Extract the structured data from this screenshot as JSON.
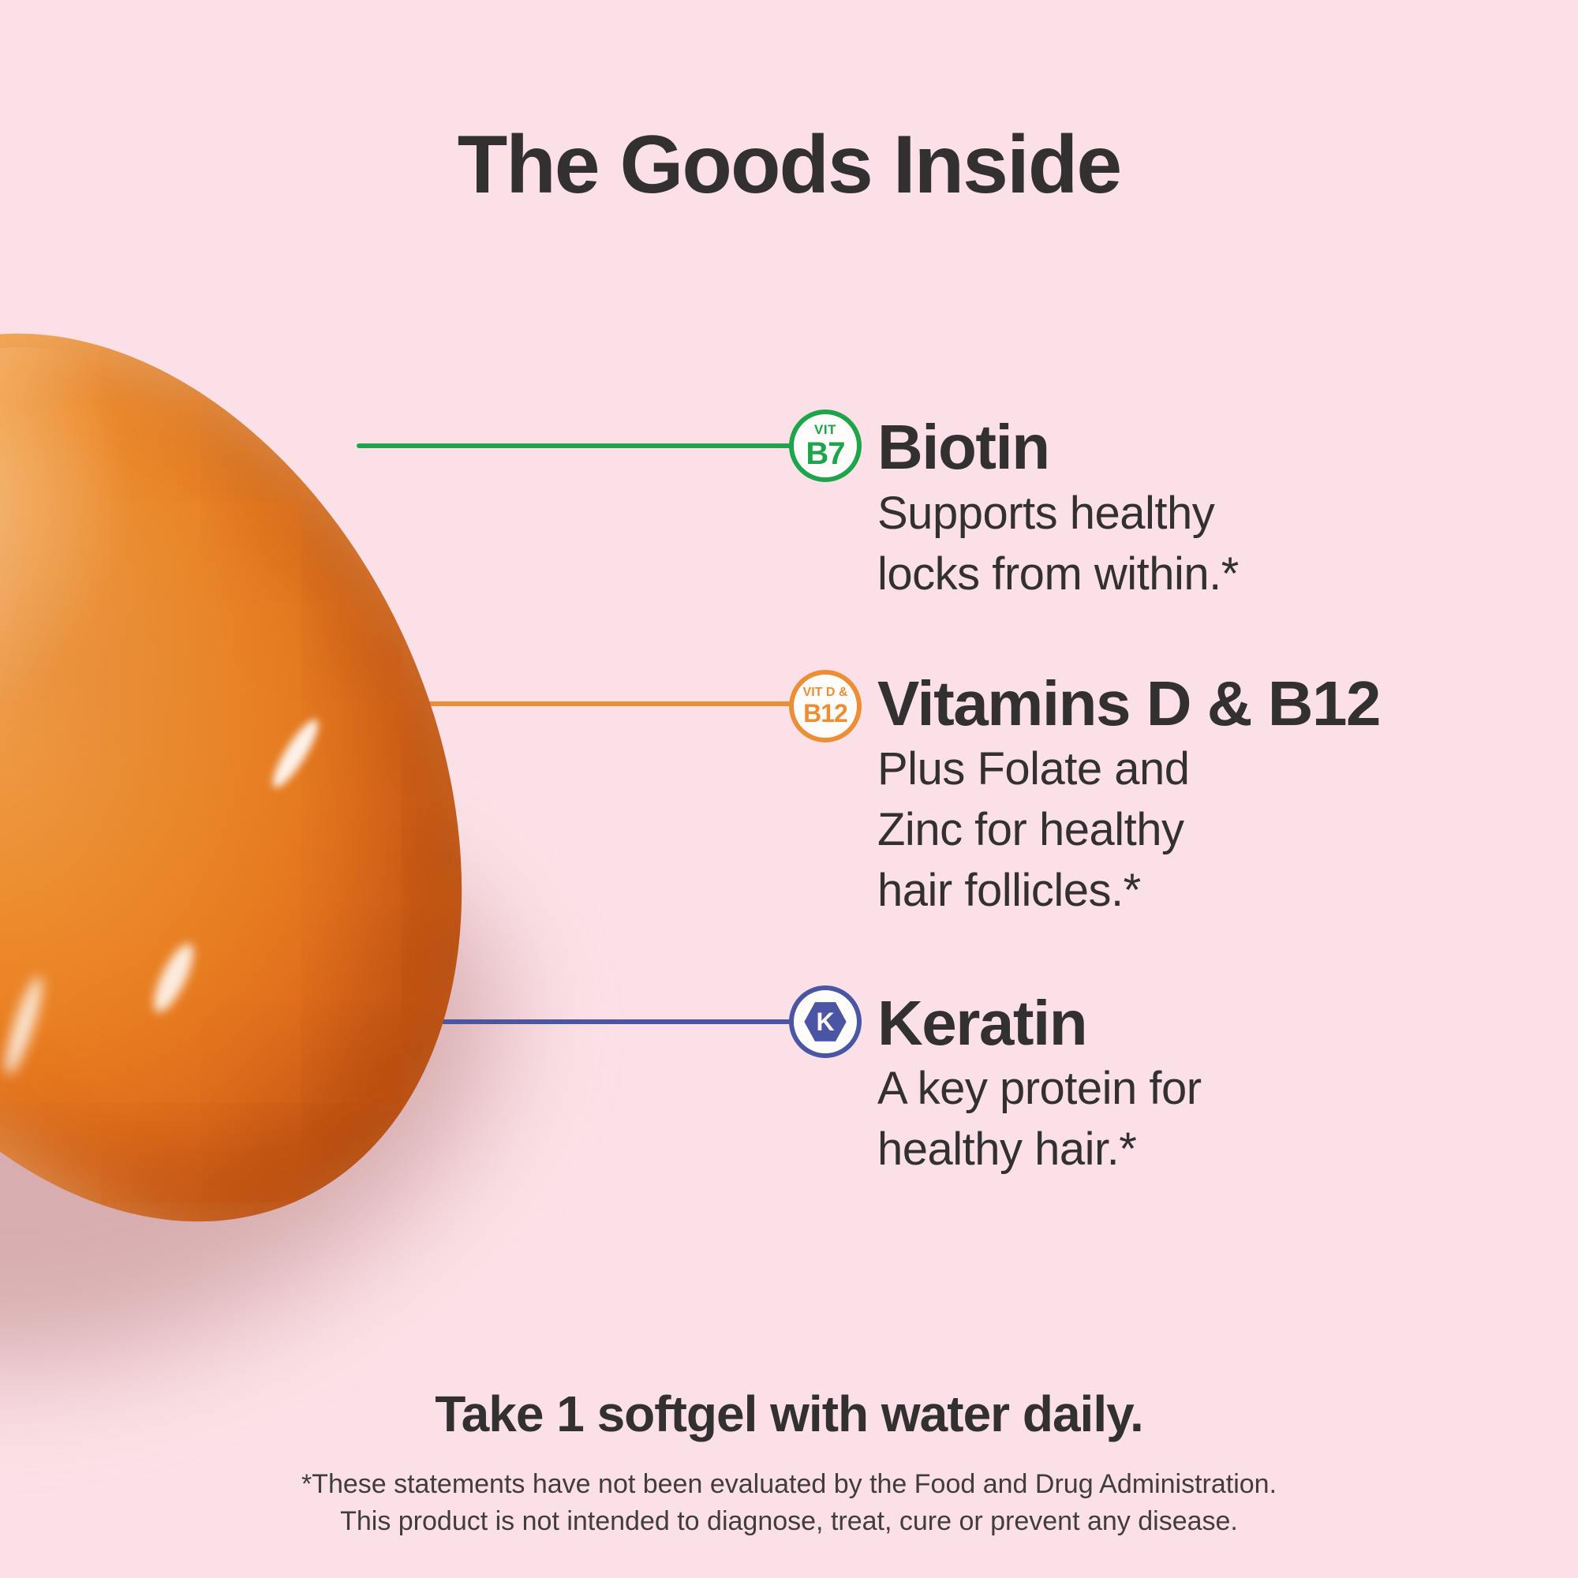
{
  "title": "The Goods Inside",
  "colors": {
    "background": "#fbe1e7",
    "text": "#333032",
    "biotin_green": "#1ca54b",
    "vitd_orange": "#ec8e35",
    "keratin_blue": "#4a55a4",
    "capsule_orange": "#e87c20"
  },
  "capsule": {
    "description": "orange softgel capsule"
  },
  "callouts": [
    {
      "badge": {
        "top": "VIT",
        "main": "B7"
      },
      "color": "#1ca54b",
      "title": "Biotin",
      "body": [
        "Supports healthy",
        "locks from within.*"
      ]
    },
    {
      "badge": {
        "top": "VIT D &",
        "main": "B12"
      },
      "color": "#ec8e35",
      "title": "Vitamins D & B12",
      "body": [
        "Plus Folate and",
        "Zinc for healthy",
        "hair follicles.*"
      ]
    },
    {
      "badge": {
        "main": "K"
      },
      "color": "#4a55a4",
      "title": "Keratin",
      "body": [
        "A key protein for",
        "healthy hair.*"
      ]
    }
  ],
  "dosage": "Take 1 softgel with water daily.",
  "disclaimer": [
    "*These statements have not been evaluated by the Food and Drug Administration.",
    "This product is not intended to diagnose, treat, cure or prevent any disease."
  ]
}
